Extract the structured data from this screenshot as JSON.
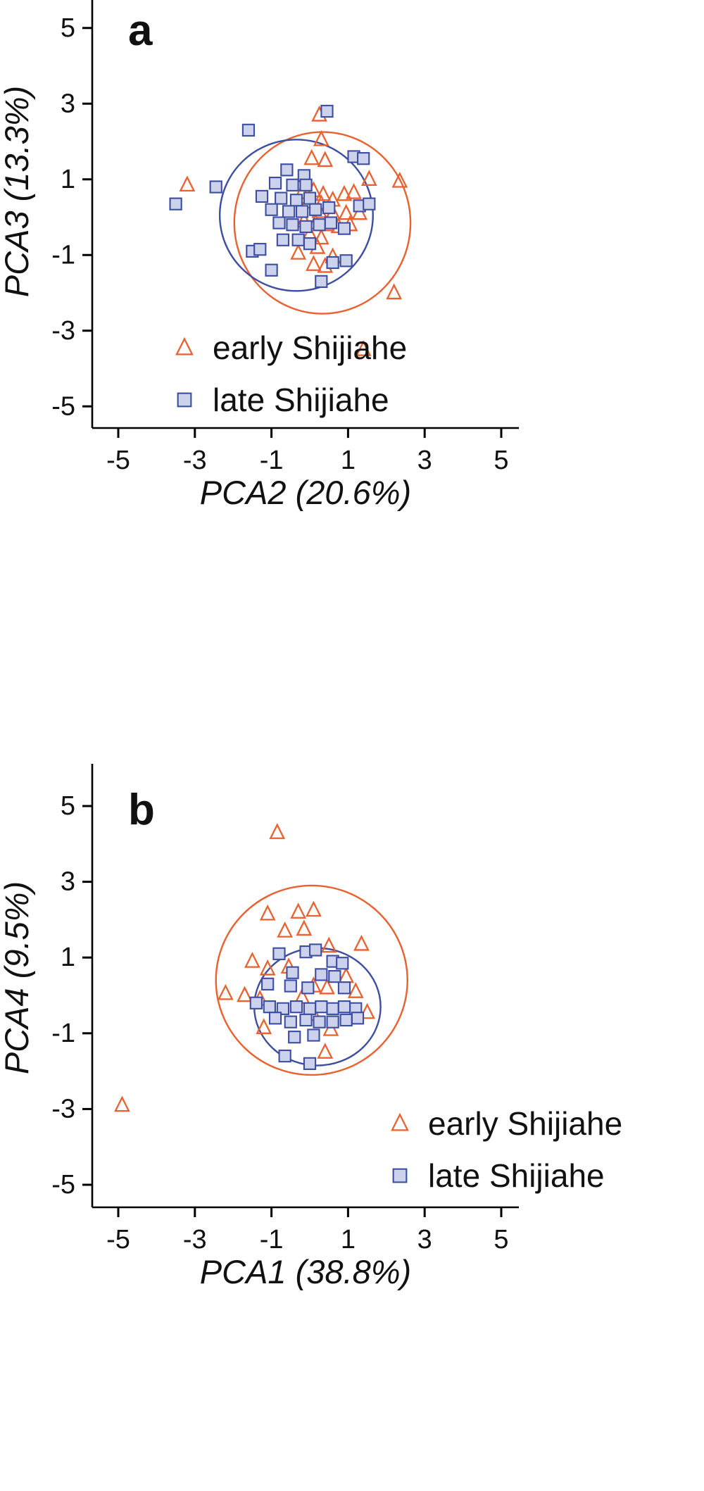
{
  "figure": {
    "background": "#ffffff",
    "colors": {
      "early": "#E8612F",
      "late_stroke": "#3D4EA0",
      "late_fill": "#CDD2EC",
      "text": "#111111",
      "axis": "#000000"
    }
  },
  "chart_data": [
    {
      "id": "a",
      "type": "scatter",
      "panel_label": "a",
      "xlabel": "PCA2 (20.6%)",
      "ylabel": "PCA3 (13.3%)",
      "xlim": [
        -5.6,
        5.6
      ],
      "ylim": [
        -5.7,
        5.7
      ],
      "xticks": [
        -5,
        -3,
        -1,
        1,
        3,
        5
      ],
      "yticks": [
        5,
        3,
        1,
        -1,
        -3,
        -5
      ],
      "grid": false,
      "legend_position": "bottom-left",
      "series": [
        {
          "name": "early Shijiahe",
          "marker": "triangle",
          "color": "#E8612F",
          "fill": "none",
          "points": [
            [
              -3.2,
              0.85
            ],
            [
              0.25,
              2.7
            ],
            [
              0.3,
              2.05
            ],
            [
              0.05,
              1.55
            ],
            [
              0.4,
              1.5
            ],
            [
              1.55,
              1.0
            ],
            [
              2.35,
              0.95
            ],
            [
              -0.2,
              0.65
            ],
            [
              0.1,
              0.7
            ],
            [
              0.35,
              0.6
            ],
            [
              0.9,
              0.6
            ],
            [
              1.15,
              0.65
            ],
            [
              -0.05,
              0.4
            ],
            [
              0.3,
              0.35
            ],
            [
              0.6,
              0.45
            ],
            [
              0.25,
              0.15
            ],
            [
              0.6,
              0.1
            ],
            [
              0.95,
              0.1
            ],
            [
              1.3,
              0.1
            ],
            [
              -0.15,
              -0.1
            ],
            [
              0.15,
              -0.15
            ],
            [
              0.45,
              -0.2
            ],
            [
              0.75,
              -0.25
            ],
            [
              1.05,
              -0.2
            ],
            [
              0.0,
              -0.45
            ],
            [
              0.3,
              -0.55
            ],
            [
              0.2,
              -0.8
            ],
            [
              -0.3,
              -0.95
            ],
            [
              0.1,
              -1.25
            ],
            [
              0.4,
              -1.3
            ],
            [
              0.6,
              -1.05
            ],
            [
              2.2,
              -2.0
            ],
            [
              1.4,
              -3.5
            ]
          ]
        },
        {
          "name": "late Shijiahe",
          "marker": "square",
          "color": "#3D4EA0",
          "fill": "#CDD2EC",
          "points": [
            [
              -3.5,
              0.35
            ],
            [
              -2.45,
              0.8
            ],
            [
              -1.6,
              2.3
            ],
            [
              0.45,
              2.8
            ],
            [
              1.15,
              1.6
            ],
            [
              1.4,
              1.55
            ],
            [
              -0.6,
              1.25
            ],
            [
              -0.15,
              1.1
            ],
            [
              -0.9,
              0.9
            ],
            [
              -0.45,
              0.85
            ],
            [
              -0.1,
              0.85
            ],
            [
              -1.25,
              0.55
            ],
            [
              -0.75,
              0.5
            ],
            [
              -0.35,
              0.45
            ],
            [
              0.0,
              0.5
            ],
            [
              -1.0,
              0.2
            ],
            [
              -0.55,
              0.15
            ],
            [
              -0.2,
              0.15
            ],
            [
              0.15,
              0.2
            ],
            [
              0.5,
              0.25
            ],
            [
              1.3,
              0.3
            ],
            [
              1.55,
              0.35
            ],
            [
              -0.8,
              -0.15
            ],
            [
              -0.45,
              -0.2
            ],
            [
              -0.1,
              -0.25
            ],
            [
              0.25,
              -0.2
            ],
            [
              0.55,
              -0.15
            ],
            [
              0.9,
              -0.3
            ],
            [
              -1.5,
              -0.9
            ],
            [
              -1.3,
              -0.85
            ],
            [
              -0.7,
              -0.6
            ],
            [
              -0.3,
              -0.6
            ],
            [
              0.0,
              -0.7
            ],
            [
              -1.0,
              -1.4
            ],
            [
              0.6,
              -1.2
            ],
            [
              0.95,
              -1.15
            ],
            [
              0.3,
              -1.7
            ]
          ]
        }
      ],
      "ellipses": [
        {
          "series": "early Shijiahe",
          "cx": 0.33,
          "cy": -0.15,
          "rx": 2.3,
          "ry": 2.4,
          "color": "#E8612F"
        },
        {
          "series": "late Shijiahe",
          "cx": -0.35,
          "cy": 0.05,
          "rx": 2.0,
          "ry": 2.0,
          "color": "#3D4EA0"
        }
      ]
    },
    {
      "id": "b",
      "type": "scatter",
      "panel_label": "b",
      "xlabel": "PCA1 (38.8%)",
      "ylabel": "PCA4 (9.5%)",
      "xlim": [
        -5.6,
        5.6
      ],
      "ylim": [
        -5.7,
        5.7
      ],
      "xticks": [
        -5,
        -3,
        -1,
        1,
        3,
        5
      ],
      "yticks": [
        5,
        3,
        1,
        -1,
        -3,
        -5
      ],
      "grid": false,
      "legend_position": "bottom-right",
      "series": [
        {
          "name": "early Shijiahe",
          "marker": "triangle",
          "color": "#E8612F",
          "fill": "none",
          "points": [
            [
              -4.9,
              -2.9
            ],
            [
              -0.85,
              4.3
            ],
            [
              -1.1,
              2.15
            ],
            [
              -0.3,
              2.2
            ],
            [
              0.1,
              2.25
            ],
            [
              -0.65,
              1.7
            ],
            [
              -0.15,
              1.75
            ],
            [
              0.5,
              1.3
            ],
            [
              1.35,
              1.35
            ],
            [
              -1.5,
              0.9
            ],
            [
              -1.1,
              0.7
            ],
            [
              -0.55,
              0.75
            ],
            [
              0.95,
              0.5
            ],
            [
              -2.2,
              0.05
            ],
            [
              -1.7,
              0.0
            ],
            [
              -1.3,
              -0.1
            ],
            [
              0.1,
              0.25
            ],
            [
              0.45,
              0.2
            ],
            [
              1.2,
              0.1
            ],
            [
              1.5,
              -0.45
            ],
            [
              -1.2,
              -0.85
            ],
            [
              0.1,
              -0.5
            ],
            [
              0.55,
              -0.9
            ],
            [
              0.4,
              -1.5
            ],
            [
              -0.2,
              -0.05
            ]
          ]
        },
        {
          "name": "late Shijiahe",
          "marker": "square",
          "color": "#3D4EA0",
          "fill": "#CDD2EC",
          "points": [
            [
              -0.8,
              1.1
            ],
            [
              -0.1,
              1.15
            ],
            [
              0.15,
              1.2
            ],
            [
              0.6,
              0.9
            ],
            [
              0.85,
              0.85
            ],
            [
              -0.45,
              0.6
            ],
            [
              0.3,
              0.55
            ],
            [
              0.65,
              0.5
            ],
            [
              -1.1,
              0.3
            ],
            [
              -0.5,
              0.25
            ],
            [
              -0.05,
              0.2
            ],
            [
              0.9,
              0.2
            ],
            [
              -1.4,
              -0.2
            ],
            [
              -1.05,
              -0.3
            ],
            [
              -0.7,
              -0.35
            ],
            [
              -0.35,
              -0.3
            ],
            [
              0.0,
              -0.35
            ],
            [
              0.3,
              -0.3
            ],
            [
              0.6,
              -0.35
            ],
            [
              0.9,
              -0.3
            ],
            [
              1.2,
              -0.35
            ],
            [
              -0.9,
              -0.6
            ],
            [
              -0.5,
              -0.7
            ],
            [
              -0.1,
              -0.65
            ],
            [
              0.25,
              -0.7
            ],
            [
              0.6,
              -0.7
            ],
            [
              0.95,
              -0.65
            ],
            [
              1.25,
              -0.6
            ],
            [
              -0.4,
              -1.1
            ],
            [
              0.1,
              -1.05
            ],
            [
              -0.65,
              -1.6
            ],
            [
              0.0,
              -1.8
            ]
          ]
        }
      ],
      "ellipses": [
        {
          "series": "early Shijiahe",
          "cx": 0.05,
          "cy": 0.4,
          "rx": 2.5,
          "ry": 2.5,
          "color": "#E8612F"
        },
        {
          "series": "late Shijiahe",
          "cx": 0.2,
          "cy": -0.3,
          "rx": 1.65,
          "ry": 1.55,
          "color": "#3D4EA0"
        }
      ]
    }
  ]
}
